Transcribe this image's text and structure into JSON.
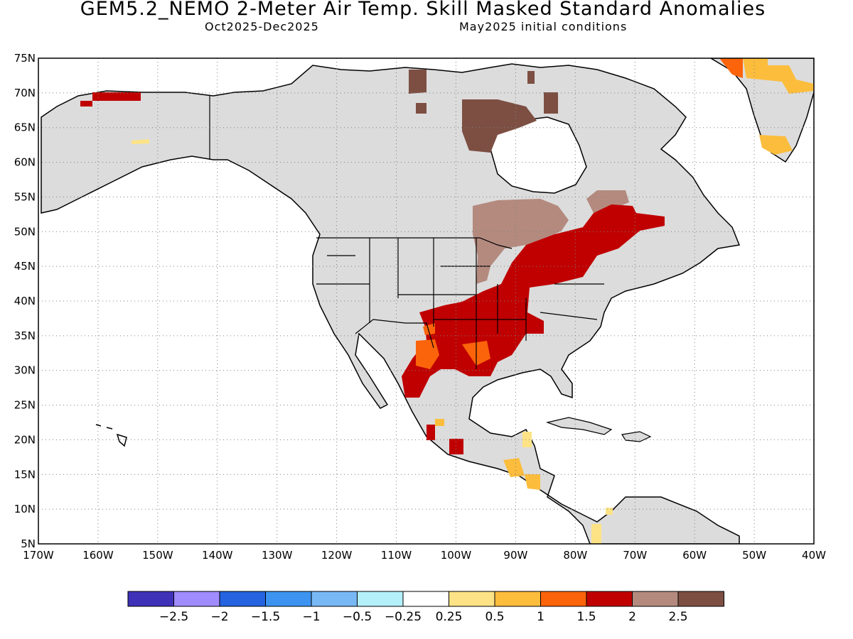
{
  "header": {
    "title": "GEM5.2_NEMO 2-Meter Air Temp. Skill Masked Standard Anomalies",
    "period": "Oct2025-Dec2025",
    "init": "May2025 initial conditions"
  },
  "map": {
    "lon_range": [
      -170,
      -40
    ],
    "lat_range": [
      5,
      75
    ],
    "lat_labels": [
      "75N",
      "70N",
      "65N",
      "60N",
      "55N",
      "50N",
      "45N",
      "40N",
      "35N",
      "30N",
      "25N",
      "20N",
      "15N",
      "10N",
      "5N"
    ],
    "lon_labels": [
      "170W",
      "160W",
      "150W",
      "140W",
      "130W",
      "120W",
      "110W",
      "100W",
      "90W",
      "80W",
      "70W",
      "60W",
      "50W",
      "40W"
    ],
    "land_color": "#dcdcdc",
    "grid": "dotted"
  },
  "colorbar": {
    "colors": [
      "#4031b9",
      "#a08cff",
      "#2563e0",
      "#3d94f0",
      "#78b9f5",
      "#b4f0fa",
      "#ffffff",
      "#fde386",
      "#fcbd3c",
      "#fb640a",
      "#c00000",
      "#b48a7f",
      "#7d4f43"
    ],
    "labels": [
      "-2.5",
      "-2",
      "-1.5",
      "-1",
      "-0.5",
      "-0.25",
      "0.25",
      "0.5",
      "1",
      "1.5",
      "2",
      "2.5"
    ]
  }
}
